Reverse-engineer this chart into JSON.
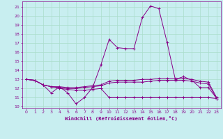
{
  "background_color": "#c8eef0",
  "grid_color": "#aaddcc",
  "line_color": "#880088",
  "xlabel": "Windchill (Refroidissement éolien,°C)",
  "xlim": [
    -0.5,
    23.5
  ],
  "ylim": [
    9.8,
    21.6
  ],
  "yticks": [
    10,
    11,
    12,
    13,
    14,
    15,
    16,
    17,
    18,
    19,
    20,
    21
  ],
  "xticks": [
    0,
    1,
    2,
    3,
    4,
    5,
    6,
    7,
    8,
    9,
    10,
    11,
    12,
    13,
    14,
    15,
    16,
    17,
    18,
    19,
    20,
    21,
    22,
    23
  ],
  "series": [
    {
      "x": [
        0,
        1,
        2,
        3,
        4,
        5,
        6,
        7,
        8,
        9,
        10,
        11,
        12,
        13,
        14,
        15,
        16,
        17,
        18,
        19,
        20,
        21,
        22,
        23
      ],
      "y": [
        13.0,
        12.9,
        12.4,
        11.5,
        12.2,
        11.5,
        10.3,
        11.0,
        12.1,
        14.6,
        17.4,
        16.5,
        16.4,
        16.4,
        19.8,
        21.1,
        20.8,
        17.1,
        13.0,
        13.3,
        12.9,
        12.1,
        12.1,
        10.9
      ]
    },
    {
      "x": [
        0,
        1,
        2,
        3,
        4,
        5,
        6,
        7,
        8,
        9,
        10,
        11,
        12,
        13,
        14,
        15,
        16,
        17,
        18,
        19,
        20,
        21,
        22,
        23
      ],
      "y": [
        13.0,
        12.9,
        12.4,
        12.2,
        12.2,
        12.1,
        12.1,
        12.2,
        12.3,
        12.4,
        12.8,
        12.9,
        12.9,
        12.9,
        13.0,
        13.0,
        13.1,
        13.1,
        13.1,
        13.1,
        13.0,
        12.8,
        12.7,
        11.0
      ]
    },
    {
      "x": [
        0,
        1,
        2,
        3,
        4,
        5,
        6,
        7,
        8,
        9,
        10,
        11,
        12,
        13,
        14,
        15,
        16,
        17,
        18,
        19,
        20,
        21,
        22,
        23
      ],
      "y": [
        13.0,
        12.9,
        12.4,
        12.2,
        12.1,
        12.0,
        12.0,
        12.1,
        12.2,
        12.3,
        12.6,
        12.7,
        12.7,
        12.7,
        12.7,
        12.8,
        12.9,
        12.9,
        12.9,
        12.9,
        12.8,
        12.6,
        12.5,
        10.9
      ]
    },
    {
      "x": [
        0,
        1,
        2,
        3,
        4,
        5,
        6,
        7,
        8,
        9,
        10,
        11,
        12,
        13,
        14,
        15,
        16,
        17,
        18,
        19,
        20,
        21,
        22,
        23
      ],
      "y": [
        13.0,
        12.9,
        12.4,
        12.2,
        12.0,
        11.9,
        11.8,
        11.8,
        11.9,
        12.0,
        11.0,
        11.0,
        11.0,
        11.0,
        11.0,
        11.0,
        11.0,
        11.0,
        11.0,
        11.0,
        11.0,
        11.0,
        11.0,
        10.9
      ]
    }
  ]
}
